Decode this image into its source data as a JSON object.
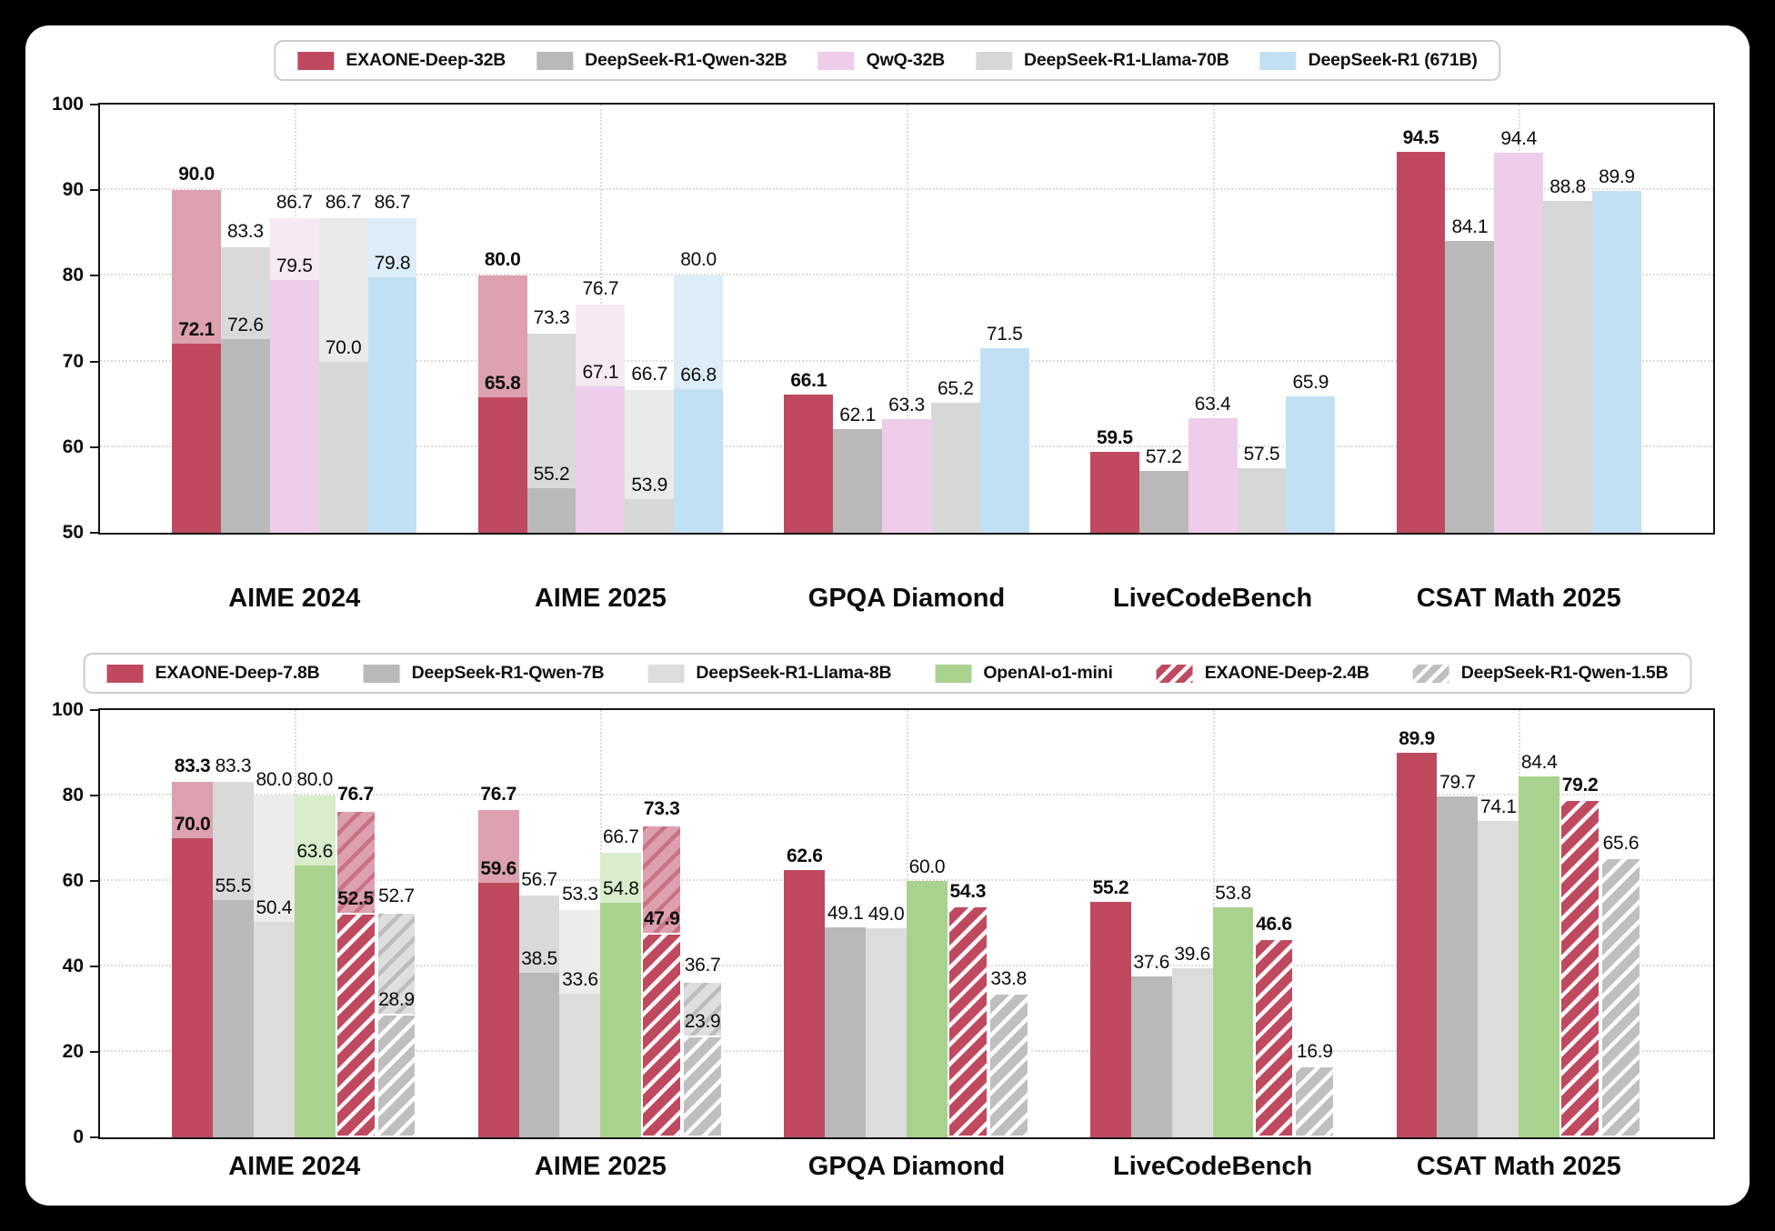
{
  "colors": {
    "background": "#000000",
    "card": "#ffffff",
    "text": "#0d0d0d",
    "grid": "#ded9d9",
    "spine": "#141414"
  },
  "chart_data": [
    {
      "type": "bar",
      "categories": [
        "AIME 2024",
        "AIME 2025",
        "GPQA Diamond",
        "LiveCodeBench",
        "CSAT Math 2025"
      ],
      "ylim": [
        50,
        100
      ],
      "yticks": [
        50,
        60,
        70,
        80,
        90,
        100
      ],
      "grid": "dotted-both",
      "legend_position": "top-center",
      "margin_units": 0.635,
      "bar_width_units": 0.16,
      "note": "light segment = score with extended budget, solid segment = base score",
      "series": [
        {
          "name": "EXAONE-Deep-32B",
          "color": "#bf4a5f",
          "light_color": "#dda0ae",
          "bold_labels": true,
          "hatch": false,
          "solid": [
            72.1,
            65.8,
            66.1,
            59.5,
            94.5
          ],
          "light": [
            90.0,
            80.0,
            null,
            null,
            null
          ]
        },
        {
          "name": "DeepSeek-R1-Qwen-32B",
          "color": "#b9b9b9",
          "light_color": "#d9d9d9",
          "bold_labels": false,
          "hatch": false,
          "solid": [
            72.6,
            55.2,
            62.1,
            57.2,
            84.1
          ],
          "light": [
            83.3,
            73.3,
            null,
            null,
            null
          ]
        },
        {
          "name": "QwQ-32B",
          "color": "#edcde9",
          "light_color": "#f7e9f4",
          "bold_labels": false,
          "hatch": false,
          "solid": [
            79.5,
            67.1,
            63.3,
            63.4,
            94.4
          ],
          "light": [
            86.7,
            76.7,
            null,
            null,
            null
          ]
        },
        {
          "name": "DeepSeek-R1-Llama-70B",
          "color": "#d7d7d7",
          "light_color": "#eaeae8",
          "bold_labels": false,
          "hatch": false,
          "solid": [
            70.0,
            53.9,
            65.2,
            57.5,
            88.8
          ],
          "light": [
            86.7,
            66.7,
            null,
            null,
            null
          ]
        },
        {
          "name": "DeepSeek-R1 (671B)",
          "color": "#c1e0f3",
          "light_color": "#dcedf8",
          "bold_labels": false,
          "hatch": false,
          "solid": [
            79.8,
            66.8,
            71.5,
            65.9,
            89.9
          ],
          "light": [
            86.7,
            80.0,
            null,
            null,
            null
          ]
        }
      ]
    },
    {
      "type": "bar",
      "categories": [
        "AIME 2024",
        "AIME 2025",
        "GPQA Diamond",
        "LiveCodeBench",
        "CSAT Math 2025"
      ],
      "ylim": [
        0,
        100
      ],
      "yticks": [
        0,
        20,
        40,
        60,
        80,
        100
      ],
      "grid": "dotted-both",
      "legend_position": "top-center",
      "margin_units": 0.635,
      "bar_width_units": 0.13333,
      "note": "light segment = score with extended budget, solid segment = base score",
      "series": [
        {
          "name": "EXAONE-Deep-7.8B",
          "color": "#bf4a5f",
          "light_color": "#dda0ae",
          "bold_labels": true,
          "hatch": false,
          "solid": [
            70.0,
            59.6,
            62.6,
            55.2,
            89.9
          ],
          "light": [
            83.3,
            76.7,
            null,
            null,
            null
          ]
        },
        {
          "name": "DeepSeek-R1-Qwen-7B",
          "color": "#b9b9b9",
          "light_color": "#d9d9d9",
          "bold_labels": false,
          "hatch": false,
          "solid": [
            55.5,
            38.5,
            49.1,
            37.6,
            79.7
          ],
          "light": [
            83.3,
            56.7,
            null,
            null,
            null
          ]
        },
        {
          "name": "DeepSeek-R1-Llama-8B",
          "color": "#dcdcdc",
          "light_color": "#ececea",
          "bold_labels": false,
          "hatch": false,
          "solid": [
            50.4,
            33.6,
            49.0,
            39.6,
            74.1
          ],
          "light": [
            80.0,
            53.3,
            null,
            null,
            null
          ]
        },
        {
          "name": "OpenAI-o1-mini",
          "color": "#a9d28f",
          "light_color": "#d8edcb",
          "bold_labels": false,
          "hatch": false,
          "solid": [
            63.6,
            54.8,
            60.0,
            53.8,
            84.4
          ],
          "light": [
            80.0,
            66.7,
            null,
            null,
            null
          ]
        },
        {
          "name": "EXAONE-Deep-2.4B",
          "color": "#bf4a5f",
          "light_color": "#dda0ae",
          "light_stripe": "#ca7285",
          "bold_labels": true,
          "hatch": true,
          "solid": [
            52.5,
            47.9,
            54.3,
            46.6,
            79.2
          ],
          "light": [
            76.7,
            73.3,
            null,
            null,
            null
          ]
        },
        {
          "name": "DeepSeek-R1-Qwen-1.5B",
          "color": "#bfbfbf",
          "light_color": "#dedede",
          "light_stripe": "#bdbdbd",
          "bold_labels": false,
          "hatch": true,
          "solid": [
            28.9,
            23.9,
            33.8,
            16.9,
            65.6
          ],
          "light": [
            52.7,
            36.7,
            null,
            null,
            null
          ]
        }
      ]
    }
  ]
}
